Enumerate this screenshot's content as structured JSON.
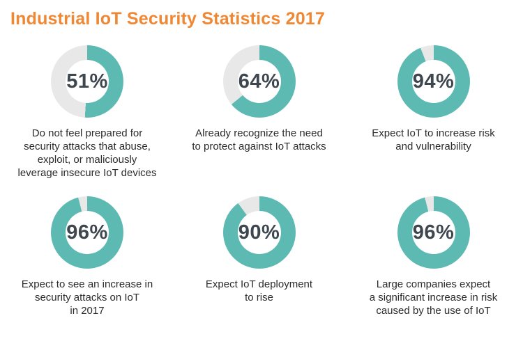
{
  "title": "Industrial IoT Security Statistics 2017",
  "colors": {
    "title_orange": "#EF8733",
    "donut_fill_teal": "#5CBAB3",
    "donut_track_gray": "#E8E8E8",
    "percent_text": "#3E4750",
    "caption_text": "#2B2B2B",
    "background": "#FFFFFF"
  },
  "stats": [
    {
      "pct": "51%",
      "value": 51,
      "caption": "Do not feel prepared for\nsecurity attacks that abuse,\nexploit, or maliciously\nleverage insecure IoT devices"
    },
    {
      "pct": "64%",
      "value": 64,
      "caption": "Already recognize the need\nto protect against IoT attacks"
    },
    {
      "pct": "94%",
      "value": 94,
      "caption": "Expect IoT to increase risk\nand vulnerability"
    },
    {
      "pct": "96%",
      "value": 96,
      "caption": "Expect to see an increase in\nsecurity attacks on IoT\nin 2017"
    },
    {
      "pct": "90%",
      "value": 90,
      "caption": "Expect IoT deployment\nto rise"
    },
    {
      "pct": "96%",
      "value": 96,
      "caption": "Large companies expect\na significant increase in risk\ncaused by the use of IoT"
    }
  ],
  "chart_data": [
    {
      "type": "pie",
      "subtype": "donut",
      "values": [
        51,
        49
      ],
      "labels": [
        "stat",
        "remainder"
      ],
      "colors": [
        "#5CBAB3",
        "#E8E8E8"
      ],
      "center_label": "51%",
      "start_angle_deg": 0,
      "direction": "clockwise",
      "title": "Do not feel prepared for security attacks that abuse, exploit, or maliciously leverage insecure IoT devices"
    },
    {
      "type": "pie",
      "subtype": "donut",
      "values": [
        64,
        36
      ],
      "labels": [
        "stat",
        "remainder"
      ],
      "colors": [
        "#5CBAB3",
        "#E8E8E8"
      ],
      "center_label": "64%",
      "start_angle_deg": 0,
      "direction": "clockwise",
      "title": "Already recognize the need to protect against IoT attacks"
    },
    {
      "type": "pie",
      "subtype": "donut",
      "values": [
        94,
        6
      ],
      "labels": [
        "stat",
        "remainder"
      ],
      "colors": [
        "#5CBAB3",
        "#E8E8E8"
      ],
      "center_label": "94%",
      "start_angle_deg": 0,
      "direction": "clockwise",
      "title": "Expect IoT to increase risk and vulnerability"
    },
    {
      "type": "pie",
      "subtype": "donut",
      "values": [
        96,
        4
      ],
      "labels": [
        "stat",
        "remainder"
      ],
      "colors": [
        "#5CBAB3",
        "#E8E8E8"
      ],
      "center_label": "96%",
      "start_angle_deg": 0,
      "direction": "clockwise",
      "title": "Expect to see an increase in security attacks on IoT in 2017"
    },
    {
      "type": "pie",
      "subtype": "donut",
      "values": [
        90,
        10
      ],
      "labels": [
        "stat",
        "remainder"
      ],
      "colors": [
        "#5CBAB3",
        "#E8E8E8"
      ],
      "center_label": "90%",
      "start_angle_deg": 0,
      "direction": "clockwise",
      "title": "Expect IoT deployment to rise"
    },
    {
      "type": "pie",
      "subtype": "donut",
      "values": [
        96,
        4
      ],
      "labels": [
        "stat",
        "remainder"
      ],
      "colors": [
        "#5CBAB3",
        "#E8E8E8"
      ],
      "center_label": "96%",
      "start_angle_deg": 0,
      "direction": "clockwise",
      "title": "Large companies expect a significant increase in risk caused by the use of IoT"
    }
  ]
}
